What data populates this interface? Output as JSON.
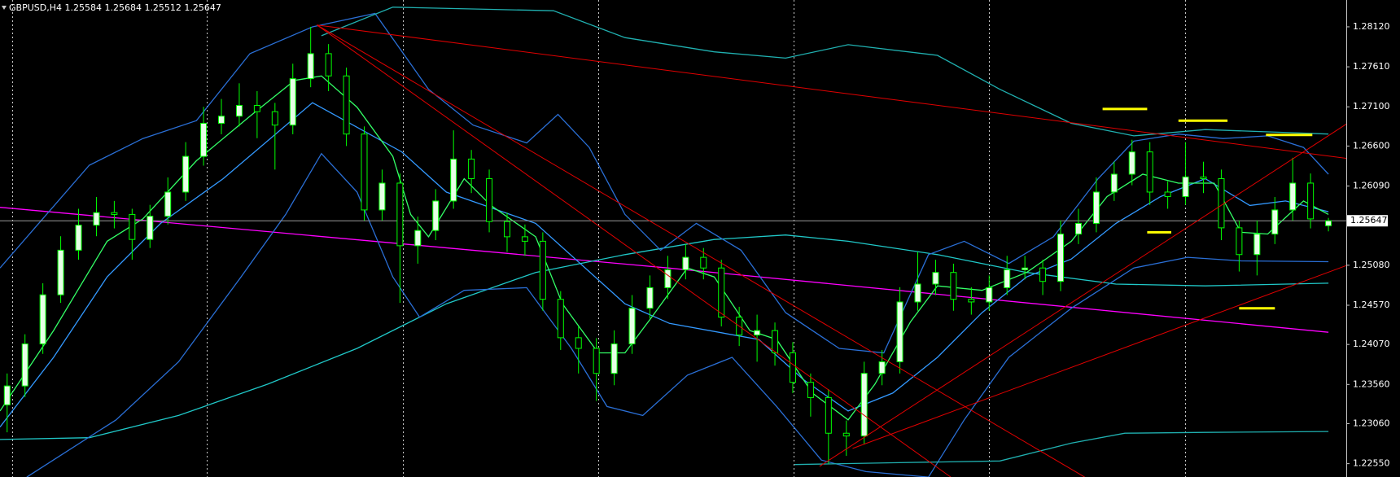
{
  "chart_data": {
    "type": "candlestick",
    "title": "GBPUSD,H4  1.25584 1.25684 1.25512 1.25647",
    "xlim": [
      -0.4,
      75
    ],
    "ylim": [
      1.2238,
      1.28462
    ],
    "yticks": [
      {
        "value": 1.2812,
        "label": "1.28120"
      },
      {
        "value": 1.2761,
        "label": "1.27610"
      },
      {
        "value": 1.271,
        "label": "1.27100"
      },
      {
        "value": 1.266,
        "label": "1.26600"
      },
      {
        "value": 1.2609,
        "label": "1.26090"
      },
      {
        "value": 1.2508,
        "label": "1.25080"
      },
      {
        "value": 1.2457,
        "label": "1.24570"
      },
      {
        "value": 1.2407,
        "label": "1.24070"
      },
      {
        "value": 1.2356,
        "label": "1.23560"
      },
      {
        "value": 1.2306,
        "label": "1.23060"
      },
      {
        "value": 1.2255,
        "label": "1.22550"
      }
    ],
    "current_price": {
      "value": 1.25647,
      "label": "1.25647"
    },
    "bull_color": "#00ff00",
    "bull_fill": "#e6ffe6",
    "bear_color": "#00ff00",
    "bear_fill": "#000000",
    "candles": {
      "open": [
        1.233,
        1.23541,
        1.24077,
        1.24703,
        1.25272,
        1.25591,
        1.25751,
        1.25728,
        1.25409,
        1.25705,
        1.26013,
        1.26468,
        1.2689,
        1.26981,
        1.27118,
        1.27038,
        1.26867,
        1.27459,
        1.27778,
        1.27494,
        1.26753,
        1.25785,
        1.26127,
        1.25329,
        1.25523,
        1.25899,
        1.26434,
        1.26184,
        1.25637,
        1.25443,
        1.25386,
        1.24646,
        1.24156,
        1.2402,
        1.23701,
        1.24077,
        1.24532,
        1.24794,
        1.25022,
        1.25181,
        1.25045,
        1.24418,
        1.2419,
        1.24247,
        1.23963,
        1.23587,
        1.23393,
        1.22938,
        1.22903,
        1.23701,
        1.23849,
        1.24612,
        1.2484,
        1.24988,
        1.24646,
        1.24612,
        1.24794,
        1.25022,
        1.25045,
        1.24874,
        1.25478,
        1.25614,
        1.26013,
        1.26241,
        1.26525,
        1.26013,
        1.25956,
        1.26206,
        1.26184,
        1.25557,
        1.25216,
        1.25478,
        1.25785,
        1.26127,
        1.25584
      ],
      "high": [
        1.237,
        1.242,
        1.2485,
        1.2545,
        1.258,
        1.2595,
        1.259,
        1.258,
        1.2585,
        1.262,
        1.2665,
        1.271,
        1.272,
        1.274,
        1.273,
        1.2715,
        1.2765,
        1.2812,
        1.279,
        1.276,
        1.2685,
        1.263,
        1.2625,
        1.257,
        1.2605,
        1.268,
        1.2655,
        1.263,
        1.2575,
        1.256,
        1.255,
        1.2475,
        1.243,
        1.2415,
        1.2425,
        1.247,
        1.2495,
        1.252,
        1.2535,
        1.253,
        1.2515,
        1.2455,
        1.2445,
        1.2435,
        1.241,
        1.237,
        1.235,
        1.231,
        1.2385,
        1.24,
        1.248,
        1.2525,
        1.2515,
        1.251,
        1.248,
        1.2495,
        1.252,
        1.252,
        1.2515,
        1.2565,
        1.258,
        1.262,
        1.264,
        1.2668,
        1.2665,
        1.2615,
        1.2665,
        1.264,
        1.263,
        1.2565,
        1.2565,
        1.2595,
        1.2645,
        1.2625,
        1.25684
      ],
      "low": [
        1.2295,
        1.234,
        1.2395,
        1.246,
        1.2515,
        1.2545,
        1.2555,
        1.2515,
        1.253,
        1.256,
        1.259,
        1.2635,
        1.2675,
        1.2685,
        1.267,
        1.263,
        1.2675,
        1.2735,
        1.273,
        1.266,
        1.2565,
        1.2565,
        1.246,
        1.251,
        1.254,
        1.258,
        1.26,
        1.255,
        1.2525,
        1.252,
        1.245,
        1.24,
        1.237,
        1.2335,
        1.2355,
        1.2395,
        1.244,
        1.2465,
        1.249,
        1.249,
        1.243,
        1.2405,
        1.2385,
        1.238,
        1.2345,
        1.2315,
        1.2255,
        1.2265,
        1.228,
        1.2355,
        1.237,
        1.245,
        1.247,
        1.245,
        1.2445,
        1.245,
        1.247,
        1.249,
        1.247,
        1.2475,
        1.2535,
        1.255,
        1.259,
        1.261,
        1.2585,
        1.258,
        1.2585,
        1.26,
        1.254,
        1.25,
        1.2495,
        1.2535,
        1.2565,
        1.2555,
        1.25512
      ],
      "close": [
        1.23541,
        1.24077,
        1.24703,
        1.25272,
        1.25591,
        1.25751,
        1.25728,
        1.25409,
        1.25705,
        1.26013,
        1.26468,
        1.2689,
        1.26981,
        1.27118,
        1.27038,
        1.26867,
        1.27459,
        1.27778,
        1.27494,
        1.26753,
        1.25785,
        1.26127,
        1.25329,
        1.25523,
        1.25899,
        1.26434,
        1.26184,
        1.25637,
        1.25443,
        1.25386,
        1.24646,
        1.24156,
        1.2402,
        1.23701,
        1.24077,
        1.24532,
        1.24794,
        1.25022,
        1.25181,
        1.25045,
        1.24418,
        1.2419,
        1.24247,
        1.23963,
        1.23587,
        1.23393,
        1.22938,
        1.22903,
        1.23701,
        1.23849,
        1.24612,
        1.2484,
        1.24988,
        1.24646,
        1.24612,
        1.24794,
        1.25022,
        1.25045,
        1.24874,
        1.25478,
        1.25614,
        1.26013,
        1.26241,
        1.26525,
        1.26013,
        1.25956,
        1.26206,
        1.26184,
        1.25557,
        1.25216,
        1.25478,
        1.25785,
        1.26127,
        1.25671,
        1.25647
      ]
    },
    "indicators": [
      {
        "color": "#ff00ff",
        "x": [
          -0.4,
          37,
          74
        ],
        "values": [
          1.25819,
          1.25045,
          1.24225
        ]
      },
      {
        "color": "#20c8c8",
        "x": [
          -0.4,
          4.6,
          9.6,
          14.6,
          19.6,
          24.6,
          29.6,
          34.6,
          39.6,
          43.6,
          47.1,
          52.1,
          57.1,
          62.1,
          67.1,
          74
        ],
        "values": [
          1.22858,
          1.22881,
          1.23165,
          1.23564,
          1.2402,
          1.24589,
          1.24988,
          1.25216,
          1.25409,
          1.25466,
          1.25386,
          1.25216,
          1.24988,
          1.2484,
          1.24817,
          1.24851
        ]
      },
      {
        "color": "#3399ff",
        "x": [
          -0.4,
          2.6,
          5.6,
          8.6,
          12.1,
          17.1,
          22.1,
          24.6,
          29.6,
          34.6,
          37.1,
          42.1,
          44.6,
          47.1,
          49.6,
          52.1,
          54.6,
          57.1,
          59.6,
          62.1,
          64.6,
          67.1,
          69.6,
          71.6,
          74
        ],
        "values": [
          1.23017,
          1.23906,
          1.24931,
          1.25614,
          1.26184,
          1.27152,
          1.26525,
          1.26013,
          1.25614,
          1.24589,
          1.24339,
          1.24133,
          1.23621,
          1.23222,
          1.2345,
          1.23906,
          1.24475,
          1.24931,
          1.25159,
          1.25614,
          1.25956,
          1.26184,
          1.25842,
          1.25899,
          1.25762
        ]
      },
      {
        "color": "#33ff66",
        "x": [
          -0.4,
          2.6,
          5.6,
          7.6,
          10.6,
          13.6,
          16.1,
          17.6,
          19.6,
          21.6,
          22.6,
          23.6,
          25.6,
          27.1,
          29.6,
          31.1,
          33.1,
          34.6,
          36.1,
          38.1,
          39.6,
          41.6,
          43.1,
          45.1,
          47.1,
          48.6,
          50.6,
          52.1,
          54.6,
          57.1,
          59.6,
          61.6,
          63.6,
          65.6,
          67.6,
          69.1,
          70.6,
          72.6,
          74
        ],
        "values": [
          1.23222,
          1.24247,
          1.25386,
          1.25671,
          1.26412,
          1.26981,
          1.27437,
          1.27494,
          1.27095,
          1.26468,
          1.25728,
          1.25443,
          1.26184,
          1.25842,
          1.25443,
          1.24589,
          1.23963,
          1.23963,
          1.24418,
          1.25045,
          1.24931,
          1.24247,
          1.24133,
          1.2345,
          1.23109,
          1.23564,
          1.24361,
          1.24817,
          1.2476,
          1.24988,
          1.25386,
          1.25956,
          1.26241,
          1.26127,
          1.26127,
          1.255,
          1.25478,
          1.25899,
          1.25728
        ]
      },
      {
        "color": "#2a6fd6",
        "x": [
          -0.4,
          4.6,
          7.6,
          10.6,
          13.6,
          17.1,
          20.6,
          23.6,
          26.1,
          29.1,
          30.85,
          32.6,
          34.6,
          36.6,
          38.6,
          41.1,
          43.6,
          46.6,
          49.1,
          51.6,
          53.6,
          56.1,
          58.6,
          61.1,
          63.1,
          65.6,
          68.1,
          70.6,
          72.6,
          74
        ],
        "values": [
          1.25045,
          1.26355,
          1.26696,
          1.26924,
          1.27778,
          1.2812,
          1.28291,
          1.27323,
          1.26867,
          1.26639,
          1.27004,
          1.26582,
          1.25728,
          1.25272,
          1.25614,
          1.25272,
          1.24475,
          1.2402,
          1.23963,
          1.25216,
          1.25386,
          1.25102,
          1.25443,
          1.26184,
          1.26662,
          1.26753,
          1.26696,
          1.2673,
          1.26582,
          1.26241
        ]
      },
      {
        "color": "#2a6fd6",
        "x": [
          1.1,
          6.1,
          9.6,
          13.1,
          15.6,
          17.6,
          19.6,
          21.6,
          23.1,
          25.6,
          29.1,
          31.6,
          33.6,
          35.6,
          38.1,
          40.6,
          43.1,
          45.6,
          48.1,
          51.6,
          53.6,
          56.1,
          59.6,
          63.1,
          66.1,
          69.1,
          74
        ],
        "values": [
          1.22379,
          1.23109,
          1.23849,
          1.24931,
          1.25728,
          1.26503,
          1.26013,
          1.24931,
          1.24418,
          1.2476,
          1.24794,
          1.2402,
          1.23279,
          1.23165,
          1.23678,
          1.23906,
          1.23279,
          1.22596,
          1.22448,
          1.22379,
          1.23109,
          1.23906,
          1.24532,
          1.25045,
          1.25181,
          1.25136,
          1.25125
        ]
      },
      {
        "color": "#20b0b0",
        "x": [
          17.6,
          21.6,
          30.6,
          34.6,
          39.6,
          43.6,
          47.1,
          52.1,
          55.6,
          59.6,
          63.1,
          67.1,
          74
        ],
        "values": [
          1.28006,
          1.28371,
          1.28325,
          1.27983,
          1.27801,
          1.27721,
          1.27892,
          1.27756,
          1.27323,
          1.2689,
          1.2673,
          1.2681,
          1.26753
        ]
      },
      {
        "color": "#20b0b0",
        "x": [
          44.1,
          49.6,
          55.6,
          59.6,
          62.6,
          67.1,
          74
        ],
        "values": [
          1.22539,
          1.22562,
          1.22584,
          1.22812,
          1.22938,
          1.22949,
          1.2296
        ]
      }
    ],
    "trend_lines": [
      {
        "color": "#e00000",
        "x": [
          17.35,
          78
        ],
        "values": [
          1.28143,
          1.26355
        ]
      },
      {
        "color": "#e00000",
        "x": [
          17.35,
          60.35
        ],
        "values": [
          1.28143,
          1.22379
        ]
      },
      {
        "color": "#e00000",
        "x": [
          17.35,
          52.85
        ],
        "values": [
          1.28143,
          1.22379
        ]
      },
      {
        "color": "#e00000",
        "x": [
          45.5,
          78
        ],
        "values": [
          1.22516,
          1.27323
        ]
      },
      {
        "color": "#e00000",
        "x": [
          47.35,
          78
        ],
        "values": [
          1.22744,
          1.25329
        ]
      },
      {
        "color": "#ffff00",
        "x": [
          61.35,
          63.85
        ],
        "values": [
          1.27072,
          1.27072
        ]
      },
      {
        "color": "#ffff00",
        "x": [
          65.6,
          68.35
        ],
        "values": [
          1.26924,
          1.26924
        ]
      },
      {
        "color": "#ffff00",
        "x": [
          70.5,
          73.1
        ],
        "values": [
          1.26742,
          1.26742
        ]
      },
      {
        "color": "#ffff00",
        "x": [
          63.85,
          65.2
        ],
        "values": [
          1.255,
          1.255
        ]
      },
      {
        "color": "#ffff00",
        "x": [
          69,
          71
        ],
        "values": [
          1.24532,
          1.24532
        ]
      }
    ]
  }
}
